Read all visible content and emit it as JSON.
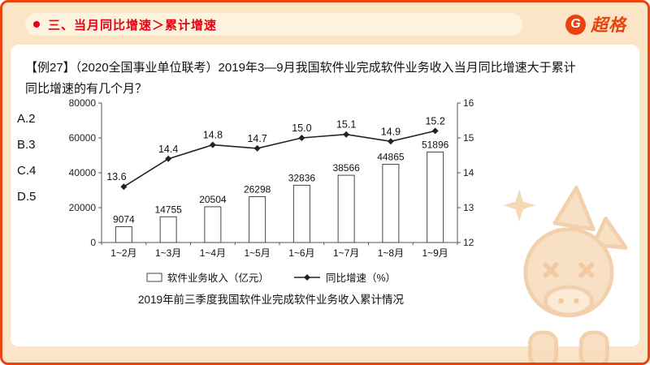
{
  "page": {
    "background_color": "#FBE5C6",
    "border_color": "#E8430F",
    "accent_red": "#E60012"
  },
  "header": {
    "title": "三、当月同比增速＞累计增速",
    "logo_letter": "G",
    "logo_text": "超格"
  },
  "question": {
    "line1": "【例27】（2020全国事业单位联考）2019年3—9月我国软件业完成软件业务收入当月同比增速大于累计",
    "line2": "同比增速的有几个月？"
  },
  "options": [
    {
      "label": "A.2"
    },
    {
      "label": "B.3"
    },
    {
      "label": "C.4"
    },
    {
      "label": "D.5"
    }
  ],
  "chart_data": {
    "type": "bar",
    "subtype": "bar+line combo, dual axis",
    "categories": [
      "1~2月",
      "1~3月",
      "1~4月",
      "1~5月",
      "1~6月",
      "1~7月",
      "1~8月",
      "1~9月"
    ],
    "series": [
      {
        "name": "软件业务收入（亿元）",
        "type": "bar",
        "axis": "left",
        "values": [
          9074,
          14755,
          20504,
          26298,
          32836,
          38566,
          44865,
          51896
        ]
      },
      {
        "name": "同比增速（%）",
        "type": "line",
        "axis": "right",
        "values": [
          13.6,
          14.4,
          14.8,
          14.7,
          15.0,
          15.1,
          14.9,
          15.2
        ]
      }
    ],
    "left_axis": {
      "min": 0,
      "max": 80000,
      "ticks": [
        0,
        20000,
        40000,
        60000,
        80000
      ]
    },
    "right_axis": {
      "min": 12,
      "max": 16,
      "ticks": [
        12,
        13,
        14,
        15,
        16
      ]
    },
    "grid": false,
    "legend_position": "bottom",
    "title": "2019年前三季度我国软件业完成软件业务收入累计情况"
  }
}
